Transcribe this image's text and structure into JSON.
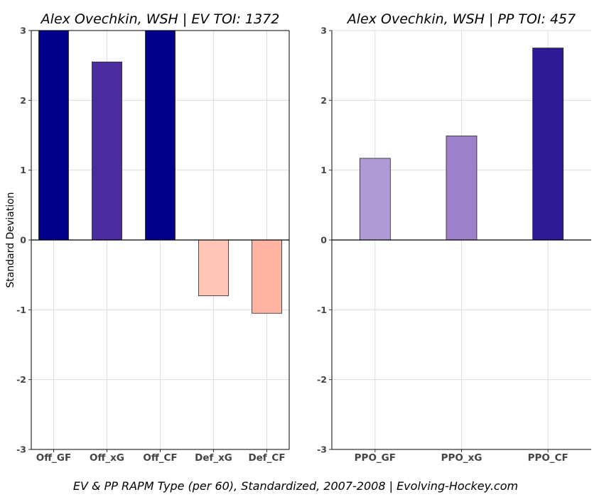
{
  "caption": "EV & PP RAPM Type (per 60), Standardized, 2007-2008    |    Evolving-Hockey.com",
  "chart_data": [
    {
      "type": "bar",
      "title": "Alex Ovechkin, WSH  |  EV TOI: 1372",
      "ylabel": "Standard Deviation",
      "ylim": [
        -3,
        3
      ],
      "yticks": [
        -3,
        -2,
        -1,
        0,
        1,
        2,
        3
      ],
      "grid": true,
      "categories": [
        "Off_GF",
        "Off_xG",
        "Off_CF",
        "Def_xG",
        "Def_CF"
      ],
      "values": [
        3.0,
        2.55,
        3.0,
        -0.8,
        -1.05
      ],
      "colors": [
        "#00008B",
        "#4A2C9E",
        "#00008B",
        "#FFC6B8",
        "#FFB4A2"
      ]
    },
    {
      "type": "bar",
      "title": "Alex Ovechkin, WSH  |  PP TOI: 457",
      "ylabel": "",
      "ylim": [
        -3,
        3
      ],
      "yticks": [
        -3,
        -2,
        -1,
        0,
        1,
        2,
        3
      ],
      "grid": true,
      "categories": [
        "PPO_GF",
        "PPO_xG",
        "PPO_CF"
      ],
      "values": [
        1.17,
        1.49,
        2.75
      ],
      "colors": [
        "#AE9AD6",
        "#9C80C9",
        "#2E1A95"
      ]
    }
  ]
}
